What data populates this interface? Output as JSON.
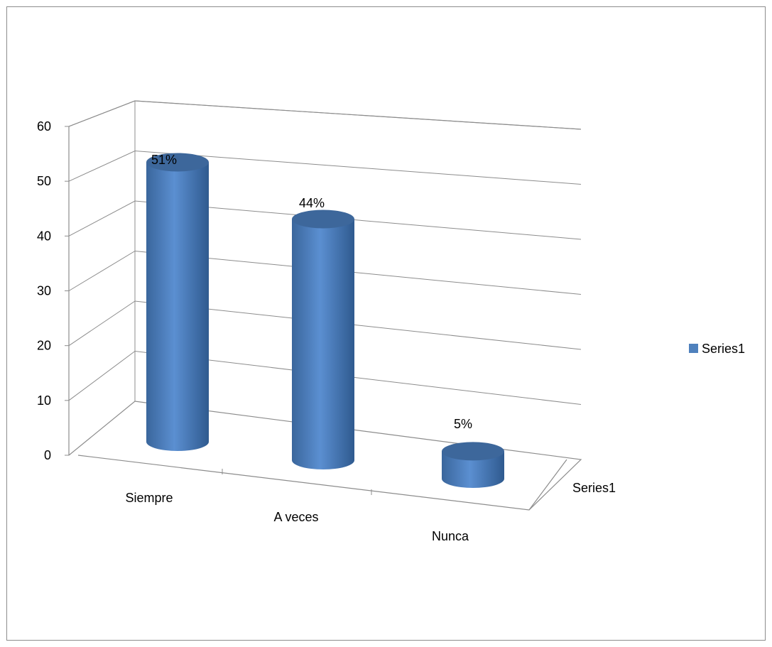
{
  "chart_data": {
    "type": "bar",
    "shape": "3d-cylinder",
    "categories": [
      "Siempre",
      "A veces",
      "Nunca"
    ],
    "series": [
      {
        "name": "Series1",
        "values": [
          51,
          44,
          5
        ],
        "color": "#4f81bd"
      }
    ],
    "data_labels": [
      "51%",
      "44%",
      "5%"
    ],
    "depth_axis_label": "Series1",
    "ylim": [
      0,
      60
    ],
    "yticks": [
      "0",
      "10",
      "20",
      "30",
      "40",
      "50",
      "60"
    ],
    "grid": true,
    "legend": {
      "position": "right",
      "entries": [
        "Series1"
      ]
    },
    "title": "",
    "xlabel": "",
    "ylabel": ""
  }
}
